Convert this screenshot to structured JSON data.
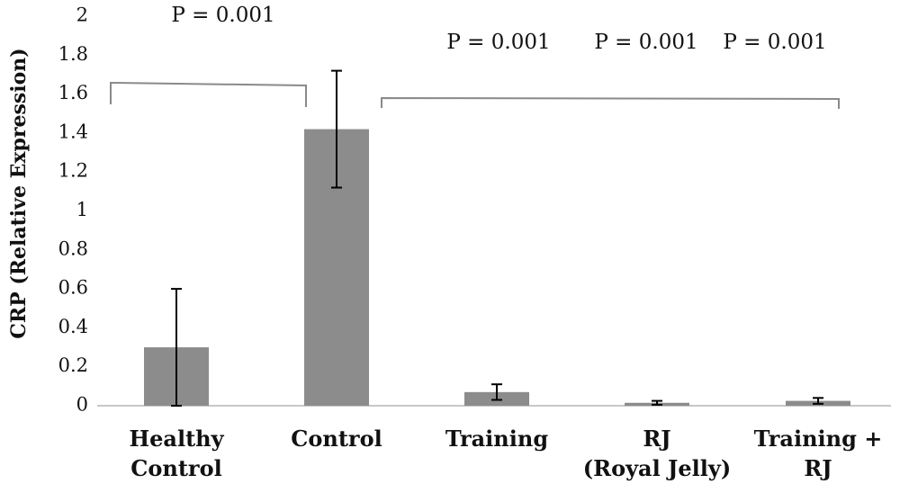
{
  "chart_data": {
    "type": "bar",
    "title": "",
    "xlabel": "",
    "ylabel": "CRP (Relative Expression)",
    "ylim": [
      0,
      2
    ],
    "yticks": [
      "0",
      "0.2",
      "0.4",
      "0.6",
      "0.8",
      "1",
      "1.2",
      "1.4",
      "1.6",
      "1.8",
      "2"
    ],
    "grid": false,
    "categories": [
      [
        "Healthy",
        "Control"
      ],
      [
        "Control"
      ],
      [
        "Training"
      ],
      [
        "RJ",
        "(Royal Jelly)"
      ],
      [
        "Training +",
        "RJ"
      ]
    ],
    "values": [
      0.3,
      1.42,
      0.07,
      0.015,
      0.025
    ],
    "error": [
      0.3,
      0.3,
      0.04,
      0.01,
      0.015
    ],
    "bar_color": "#8c8c8c",
    "annotations": [
      {
        "text": "P = 0.001",
        "from": 0,
        "to": 1
      },
      {
        "text": "P = 0.001",
        "target": 2
      },
      {
        "text": "P = 0.001",
        "target": 3
      },
      {
        "text": "P = 0.001",
        "target": 4
      }
    ]
  }
}
